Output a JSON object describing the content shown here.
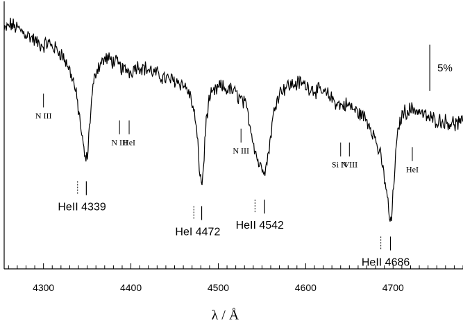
{
  "chart_data": {
    "type": "line",
    "title": "",
    "xlabel": "λ / Å",
    "ylabel": "",
    "xlim": [
      4255,
      4780
    ],
    "ylim": [
      0.77,
      1.06
    ],
    "x_ticks": [
      4300,
      4400,
      4500,
      4600,
      4700
    ],
    "x_tick_labels": [
      "4300",
      "4400",
      "4500",
      "4600",
      "4700"
    ],
    "scale_bar": {
      "label": "5%",
      "value": 0.05
    },
    "series": [
      {
        "x": [
          4255,
          4262,
          4270,
          4278,
          4286,
          4294,
          4300,
          4305,
          4312,
          4320,
          4328,
          4334,
          4338,
          4342,
          4345,
          4347,
          4349,
          4351,
          4353,
          4356,
          4360,
          4366,
          4372,
          4378,
          4384,
          4390,
          4393,
          4396,
          4399,
          4402,
          4406,
          4412,
          4420,
          4428,
          4436,
          4444,
          4452,
          4460,
          4466,
          4470,
          4474,
          4476,
          4478,
          4480,
          4481,
          4482,
          4484,
          4486,
          4490,
          4496,
          4502,
          4508,
          4514,
          4518,
          4522,
          4526,
          4530,
          4534,
          4538,
          4542,
          4546,
          4549,
          4551,
          4553,
          4555,
          4558,
          4562,
          4567,
          4572,
          4578,
          4586,
          4594,
          4602,
          4610,
          4618,
          4626,
          4634,
          4640,
          4646,
          4651,
          4656,
          4662,
          4668,
          4674,
          4680,
          4686,
          4690,
          4693,
          4696,
          4697,
          4698,
          4700,
          4703,
          4707,
          4712,
          4718,
          4724,
          4732,
          4740,
          4748,
          4756,
          4764,
          4772,
          4780
        ],
        "y": [
          1.028,
          1.035,
          1.031,
          1.026,
          1.021,
          1.014,
          1.012,
          1.015,
          1.01,
          1.004,
          0.99,
          0.975,
          0.955,
          0.93,
          0.905,
          0.893,
          0.887,
          0.899,
          0.93,
          0.962,
          0.985,
          0.994,
          0.998,
          0.996,
          0.993,
          0.987,
          0.985,
          0.987,
          0.983,
          0.986,
          0.99,
          0.989,
          0.986,
          0.982,
          0.978,
          0.975,
          0.974,
          0.97,
          0.962,
          0.95,
          0.93,
          0.91,
          0.885,
          0.866,
          0.86,
          0.868,
          0.895,
          0.93,
          0.955,
          0.962,
          0.968,
          0.965,
          0.964,
          0.962,
          0.958,
          0.954,
          0.949,
          0.938,
          0.918,
          0.9,
          0.885,
          0.88,
          0.881,
          0.878,
          0.882,
          0.9,
          0.93,
          0.956,
          0.964,
          0.968,
          0.97,
          0.972,
          0.968,
          0.964,
          0.962,
          0.958,
          0.951,
          0.947,
          0.948,
          0.946,
          0.942,
          0.938,
          0.934,
          0.925,
          0.91,
          0.89,
          0.87,
          0.85,
          0.826,
          0.818,
          0.822,
          0.85,
          0.895,
          0.928,
          0.94,
          0.942,
          0.944,
          0.939,
          0.934,
          0.932,
          0.93,
          0.929,
          0.927,
          0.928
        ]
      }
    ],
    "annotations": [
      {
        "label": "N III",
        "x": 4300,
        "y": 0.96,
        "style": "serif"
      },
      {
        "label": "HeII 4339",
        "x": 4349,
        "x_rest": 4339,
        "y": 0.865,
        "style": "sans"
      },
      {
        "label": "N III",
        "x": 4387,
        "y": 0.931,
        "style": "serif"
      },
      {
        "label": "HeI",
        "x": 4398,
        "y": 0.931,
        "style": "serif"
      },
      {
        "label": "HeI 4472",
        "x": 4481,
        "x_rest": 4472,
        "y": 0.838,
        "style": "sans"
      },
      {
        "label": "N III",
        "x": 4526,
        "y": 0.922,
        "style": "serif"
      },
      {
        "label": "HeII 4542",
        "x": 4553,
        "x_rest": 4542,
        "y": 0.845,
        "style": "sans"
      },
      {
        "label": "Si IV",
        "x": 4640,
        "y": 0.907,
        "style": "serif"
      },
      {
        "label": "N III",
        "x": 4650,
        "y": 0.907,
        "style": "serif"
      },
      {
        "label": "HeII 4686",
        "x": 4697,
        "x_rest": 4686,
        "y": 0.805,
        "style": "sans"
      },
      {
        "label": "HeI",
        "x": 4722,
        "y": 0.902,
        "style": "serif"
      }
    ]
  }
}
